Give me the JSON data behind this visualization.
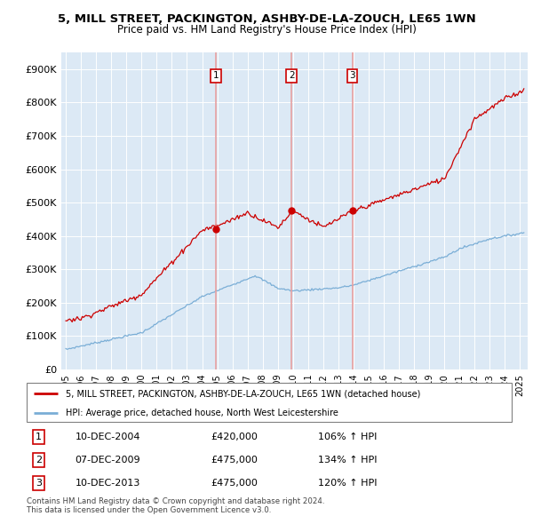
{
  "title_line1": "5, MILL STREET, PACKINGTON, ASHBY-DE-LA-ZOUCH, LE65 1WN",
  "title_line2": "Price paid vs. HM Land Registry's House Price Index (HPI)",
  "ylim": [
    0,
    950000
  ],
  "yticks": [
    0,
    100000,
    200000,
    300000,
    400000,
    500000,
    600000,
    700000,
    800000,
    900000
  ],
  "ytick_labels": [
    "£0",
    "£100K",
    "£200K",
    "£300K",
    "£400K",
    "£500K",
    "£600K",
    "£700K",
    "£800K",
    "£900K"
  ],
  "background_color": "#dce9f5",
  "grid_color": "#c8d8e8",
  "sale_color": "#cc0000",
  "hpi_color": "#7aaed6",
  "vline_color": "#e8a0a0",
  "sale_labels": [
    "1",
    "2",
    "3"
  ],
  "sale_info": [
    {
      "num": "1",
      "date": "10-DEC-2004",
      "price": "£420,000",
      "hpi": "106% ↑ HPI"
    },
    {
      "num": "2",
      "date": "07-DEC-2009",
      "price": "£475,000",
      "hpi": "134% ↑ HPI"
    },
    {
      "num": "3",
      "date": "10-DEC-2013",
      "price": "£475,000",
      "hpi": "120% ↑ HPI"
    }
  ],
  "legend_property": "5, MILL STREET, PACKINGTON, ASHBY-DE-LA-ZOUCH, LE65 1WN (detached house)",
  "legend_hpi": "HPI: Average price, detached house, North West Leicestershire",
  "footer": "Contains HM Land Registry data © Crown copyright and database right 2024.\nThis data is licensed under the Open Government Licence v3.0.",
  "xlim_start": 1994.7,
  "xlim_end": 2025.5,
  "sale_decimal": [
    2004.917,
    2009.917,
    2013.917
  ],
  "sale_prices": [
    420000,
    475000,
    475000
  ]
}
